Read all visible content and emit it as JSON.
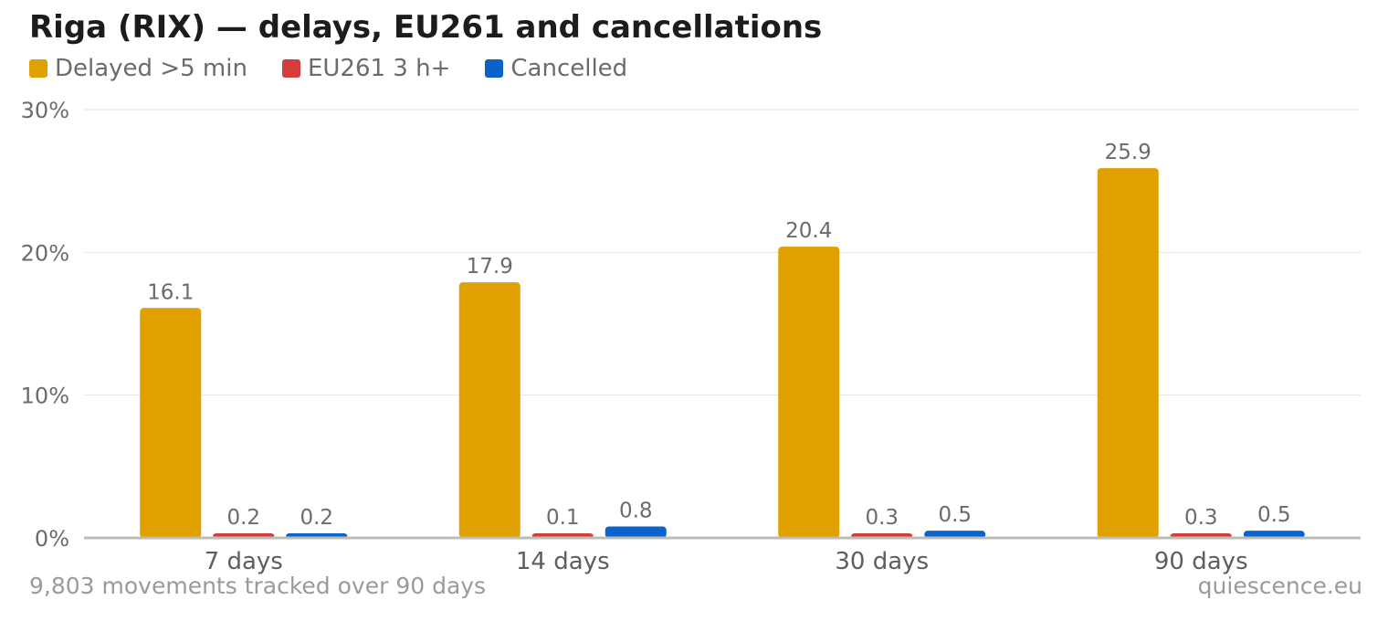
{
  "title": "Riga (RIX) — delays, EU261 and cancellations",
  "footnote": "9,803 movements tracked over 90 days",
  "source": "quiescence.eu",
  "chart_data": {
    "type": "bar",
    "title": "Riga (RIX) — delays, EU261 and cancellations",
    "xlabel": "",
    "ylabel": "",
    "categories": [
      "7 days",
      "14 days",
      "30 days",
      "90 days"
    ],
    "y_ticks": [
      "0%",
      "10%",
      "20%",
      "30%"
    ],
    "ylim": [
      0,
      30
    ],
    "grid": true,
    "legend_position": "top-left",
    "series": [
      {
        "name": "Delayed >5 min",
        "color": "#E0A000",
        "values": [
          16.1,
          17.9,
          20.4,
          25.9
        ],
        "labels": [
          "16.1",
          "17.9",
          "20.4",
          "25.9"
        ]
      },
      {
        "name": "EU261 3 h+",
        "color": "#D43D3D",
        "values": [
          0.2,
          0.1,
          0.3,
          0.3
        ],
        "labels": [
          "0.2",
          "0.1",
          "0.3",
          "0.3"
        ]
      },
      {
        "name": "Cancelled",
        "color": "#0A63C9",
        "values": [
          0.2,
          0.8,
          0.5,
          0.5
        ],
        "labels": [
          "0.2",
          "0.8",
          "0.5",
          "0.5"
        ]
      }
    ]
  }
}
